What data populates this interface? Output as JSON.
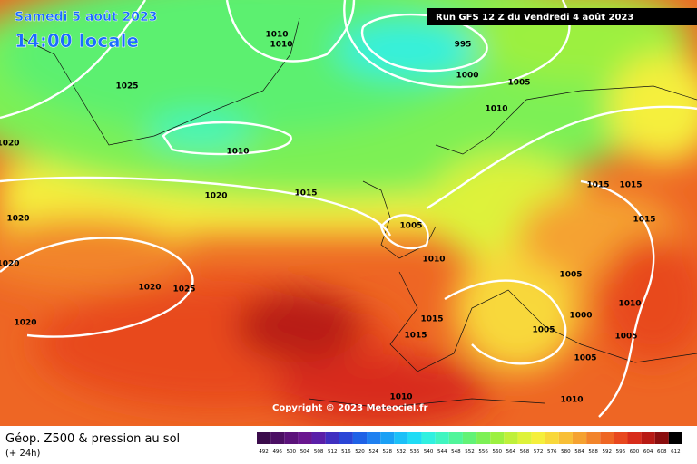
{
  "header": {
    "title": "Samedi 5 août 2023",
    "time": "14:00 locale",
    "run": "Run GFS 12 Z du Vendredi 4 août 2023"
  },
  "isobars": [
    "1010",
    "1010",
    "995",
    "1025",
    "1000",
    "1005",
    "1010",
    "1020",
    "1010",
    "1020",
    "1015",
    "1015",
    "1015",
    "1020",
    "1005",
    "1015",
    "1010",
    "1020",
    "1005",
    "1010",
    "1020",
    "1025",
    "1000",
    "1020",
    "1015",
    "1005",
    "1015",
    "1005",
    "1005",
    "1010",
    "1010"
  ],
  "copyright": "Copyright © 2023 Meteociel.fr",
  "footer": {
    "title": "Géop. Z500 & pression au sol",
    "subtitle": "(+ 24h)"
  },
  "scale": {
    "values": [
      492,
      496,
      500,
      504,
      508,
      512,
      516,
      520,
      524,
      528,
      532,
      536,
      540,
      544,
      548,
      552,
      556,
      560,
      564,
      568,
      572,
      576,
      580,
      584,
      588,
      592,
      596,
      600,
      604,
      608,
      612
    ],
    "colors": [
      "#3b0c4b",
      "#4b0f63",
      "#5b127a",
      "#6a168f",
      "#5a1fa8",
      "#3f2fc0",
      "#2a45d6",
      "#1f62e6",
      "#1f80f0",
      "#1aa0f5",
      "#1cc0f8",
      "#20dcf5",
      "#30f0e0",
      "#40f5c0",
      "#50f59a",
      "#62f276",
      "#7df055",
      "#9cf040",
      "#bff03a",
      "#def23a",
      "#f5ef3c",
      "#f8d83a",
      "#f8bf36",
      "#f5a230",
      "#f2842a",
      "#ee6624",
      "#e8481e",
      "#d82c1a",
      "#b81a14",
      "#8a0e0e",
      "#000000"
    ]
  }
}
